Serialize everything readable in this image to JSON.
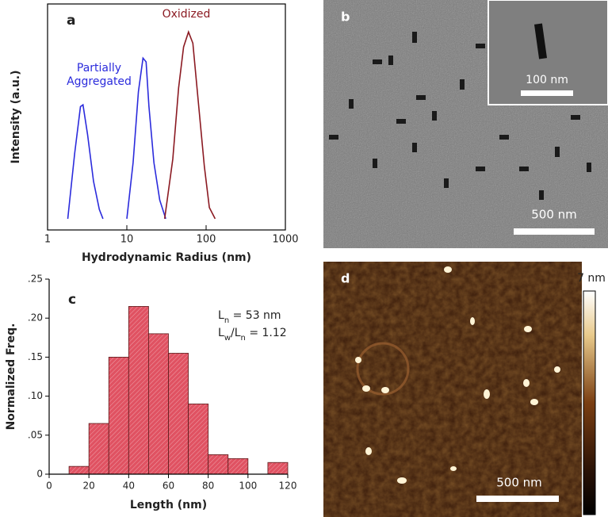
{
  "chart_data": [
    {
      "type": "line",
      "label": "a",
      "xlabel": "Hydrodynamic Radius (nm)",
      "ylabel": "Intensity (a.u.)",
      "xscale": "log",
      "xlim": [
        1,
        1000
      ],
      "xticks": [
        1,
        10,
        100,
        1000
      ],
      "ylim": [
        -0.06,
        1.15
      ],
      "series": [
        {
          "name": "Partially Aggregated",
          "color": "#2b2bdc",
          "x": [
            1.8,
            2.2,
            2.6,
            2.8,
            3.2,
            3.8,
            4.5,
            5.0,
            7,
            10,
            12,
            14,
            16,
            17.5,
            19,
            22,
            26,
            31
          ],
          "values": [
            0,
            0.35,
            0.6,
            0.61,
            0.45,
            0.2,
            0.05,
            0,
            null,
            0,
            0.3,
            0.68,
            0.86,
            0.84,
            0.6,
            0.3,
            0.1,
            0
          ]
        },
        {
          "name": "Oxidized",
          "color": "#8b1a22",
          "x": [
            30,
            38,
            45,
            52,
            60,
            68,
            80,
            95,
            110,
            130
          ],
          "values": [
            0,
            0.32,
            0.7,
            0.92,
            1.0,
            0.94,
            0.62,
            0.28,
            0.06,
            0
          ]
        }
      ]
    },
    {
      "type": "histogram",
      "label": "c",
      "xlabel": "Length (nm)",
      "ylabel": "Normalized Freq.",
      "bins": [
        10,
        20,
        30,
        40,
        50,
        60,
        70,
        80,
        90,
        100,
        110,
        120
      ],
      "values": [
        0.01,
        0.065,
        0.15,
        0.215,
        0.18,
        0.155,
        0.09,
        0.025,
        0.02,
        0,
        0.015
      ],
      "color": "#e05262",
      "xlim": [
        0,
        120
      ],
      "xticks": [
        0,
        20,
        40,
        60,
        80,
        100,
        120
      ],
      "ylim": [
        0,
        0.25
      ],
      "yticks": [
        0,
        {
          "value": 0.05,
          "label": ".05"
        },
        {
          "value": 0.1,
          "label": ".10"
        },
        {
          "value": 0.15,
          "label": ".15"
        },
        {
          "value": 0.2,
          "label": ".20"
        },
        {
          "value": 0.25,
          "label": ".25"
        }
      ],
      "annotations": [
        [
          "L",
          "n",
          " = 53 nm"
        ],
        [
          "L",
          "w",
          "/L",
          "n",
          " = 1.12"
        ]
      ]
    }
  ],
  "images": [
    {
      "label": "b",
      "inset_scale_bar": "100 nm",
      "scale_bar": "500 nm"
    },
    {
      "label": "d",
      "scale_bar": "500 nm",
      "colorbar_label": "7 nm"
    }
  ]
}
